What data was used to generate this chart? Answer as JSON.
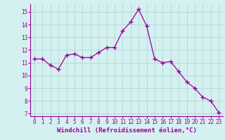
{
  "x": [
    0,
    1,
    2,
    3,
    4,
    5,
    6,
    7,
    8,
    9,
    10,
    11,
    12,
    13,
    14,
    15,
    16,
    17,
    18,
    19,
    20,
    21,
    22,
    23
  ],
  "y": [
    11.3,
    11.3,
    10.8,
    10.5,
    11.6,
    11.7,
    11.4,
    11.4,
    11.8,
    12.2,
    12.2,
    13.5,
    14.2,
    15.2,
    13.9,
    11.3,
    11.0,
    11.1,
    10.3,
    9.5,
    9.0,
    8.3,
    8.0,
    7.1
  ],
  "line_color": "#990099",
  "marker": "+",
  "marker_size": 4,
  "xlabel": "Windchill (Refroidissement éolien,°C)",
  "xlabel_fontsize": 6.5,
  "bg_color": "#d5f0f0",
  "grid_color": "#b0d8d8",
  "tick_color": "#990099",
  "label_color": "#990099",
  "ylim": [
    6.8,
    15.6
  ],
  "xlim": [
    -0.5,
    23.5
  ],
  "yticks": [
    7,
    8,
    9,
    10,
    11,
    12,
    13,
    14,
    15
  ],
  "xticks": [
    0,
    1,
    2,
    3,
    4,
    5,
    6,
    7,
    8,
    9,
    10,
    11,
    12,
    13,
    14,
    15,
    16,
    17,
    18,
    19,
    20,
    21,
    22,
    23
  ],
  "tick_fontsize": 5.5,
  "linewidth": 0.9
}
